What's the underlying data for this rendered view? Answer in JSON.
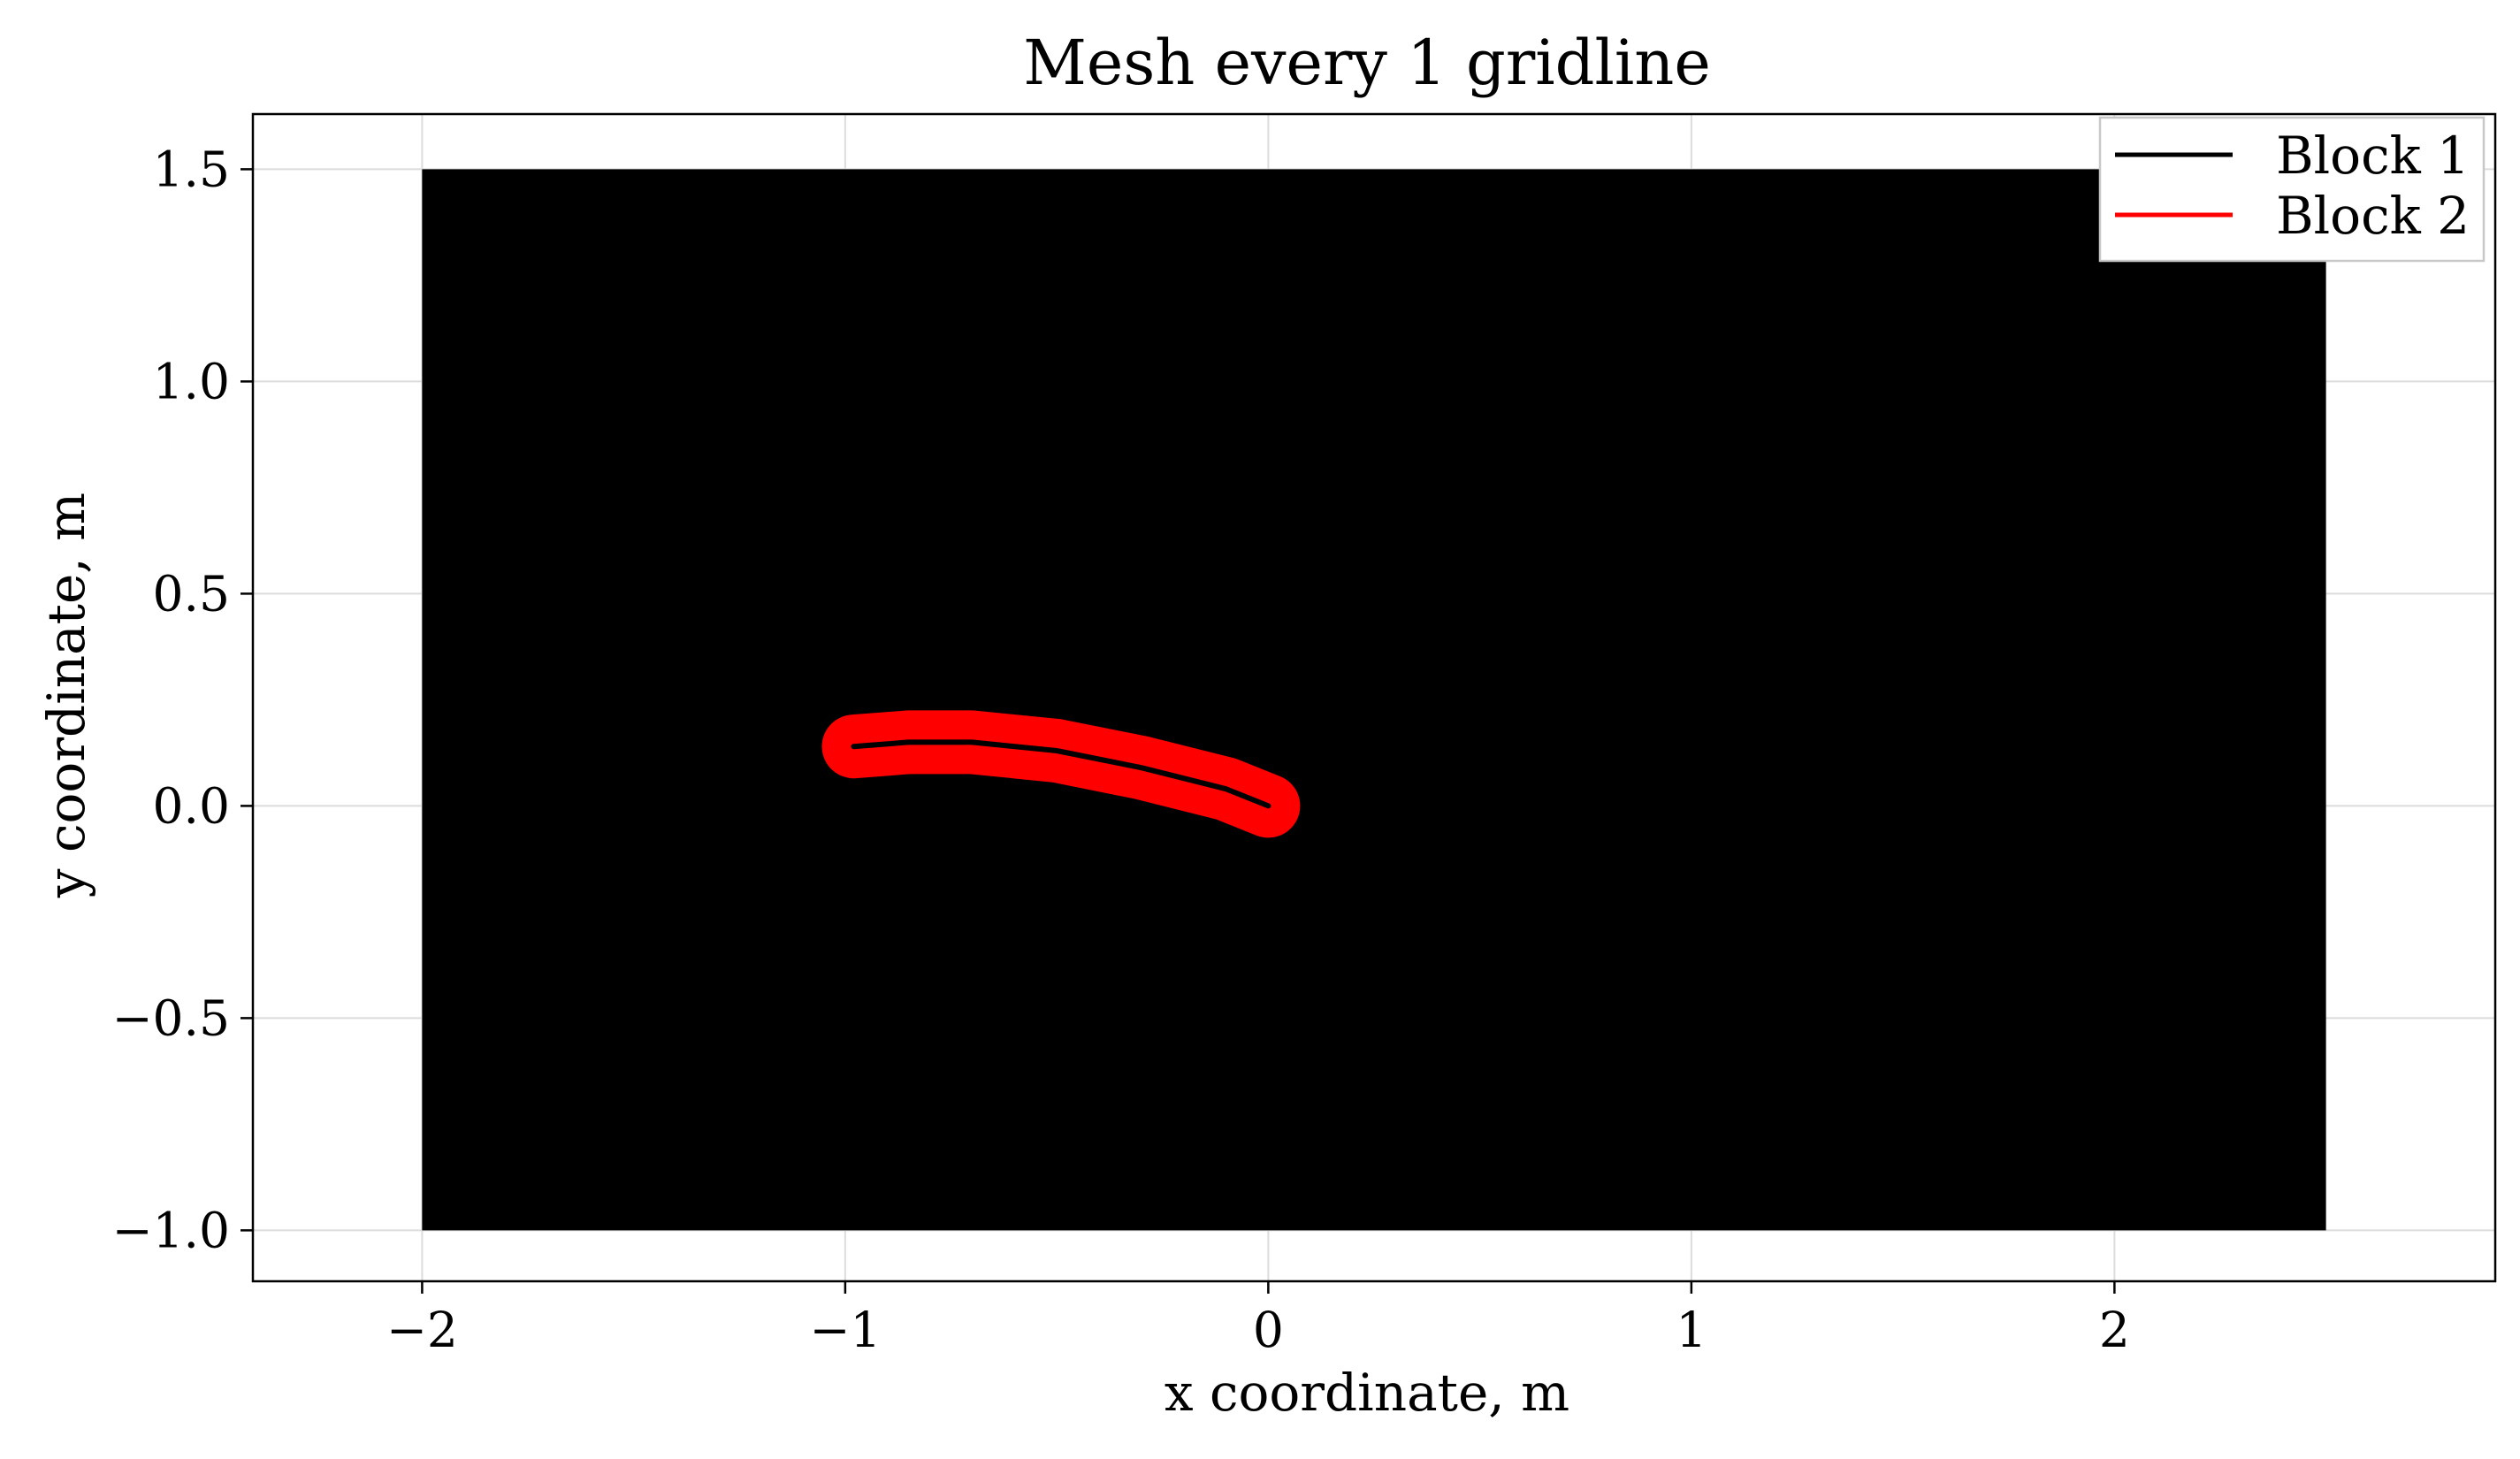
{
  "chart_data": {
    "type": "line",
    "title": "Mesh every 1 gridline",
    "xlabel": "x coordinate, m",
    "ylabel": "y coordinate, m",
    "xlim": [
      -2.4,
      2.9
    ],
    "ylim": [
      -1.12,
      1.63
    ],
    "x_ticks": [
      -2,
      -1,
      0,
      1,
      2
    ],
    "x_tick_labels": [
      "−2",
      "−1",
      "0",
      "1",
      "2"
    ],
    "y_ticks": [
      1.5,
      1.0,
      0.5,
      0.0,
      -0.5,
      -1.0
    ],
    "y_tick_labels": [
      "1.5",
      "1.0",
      "0.5",
      "0.0",
      "−0.5",
      "−1.0"
    ],
    "grid": true,
    "legend_position": "top-right",
    "series": [
      {
        "name": "Block 1",
        "color": "#000000",
        "shape": "filled-rectangle",
        "x_range": [
          -2.0,
          2.5
        ],
        "y_range": [
          -1.0,
          1.5
        ]
      },
      {
        "name": "Block 2",
        "color": "#ff0000",
        "shape": "blade-band",
        "x": [
          -0.98,
          -0.85,
          -0.7,
          -0.5,
          -0.3,
          -0.1,
          0.0
        ],
        "y": [
          0.14,
          0.15,
          0.15,
          0.13,
          0.09,
          0.04,
          0.0
        ]
      }
    ]
  }
}
